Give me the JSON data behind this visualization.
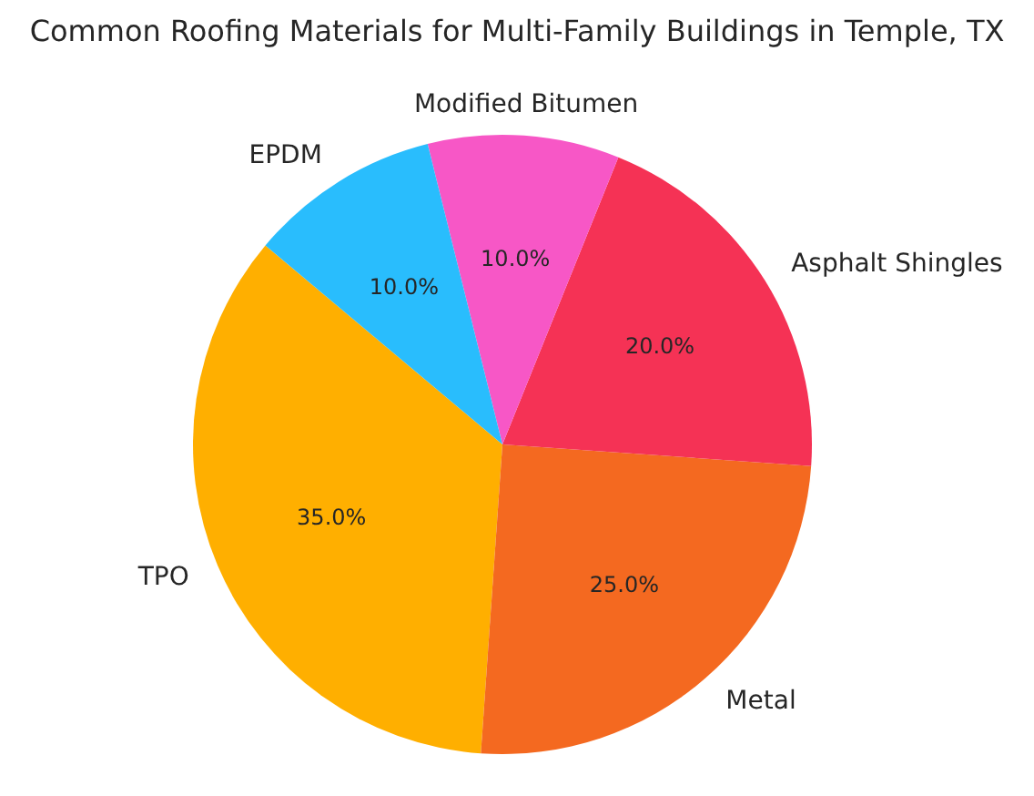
{
  "chart_data": {
    "type": "pie",
    "title": "Common Roofing Materials for Multi-Family Buildings in Temple, TX",
    "categories": [
      "TPO",
      "Metal",
      "Asphalt Shingles",
      "Modified Bitumen",
      "EPDM"
    ],
    "values": [
      35,
      25,
      20,
      10,
      10
    ],
    "colors": [
      "#ffaf00",
      "#f46920",
      "#f53255",
      "#f757c6",
      "#29bdfd"
    ],
    "value_labels": [
      "35.0%",
      "25.0%",
      "20.0%",
      "10.0%",
      "10.0%"
    ],
    "legend": false
  }
}
